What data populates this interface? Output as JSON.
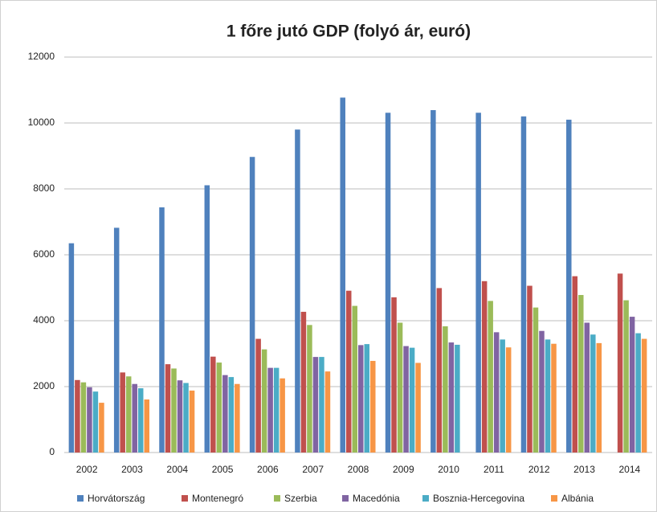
{
  "chart_data": {
    "type": "bar",
    "title": "1 főre jutó GDP (folyó ár, euró)",
    "categories": [
      "2002",
      "2003",
      "2004",
      "2005",
      "2006",
      "2007",
      "2008",
      "2009",
      "2010",
      "2011",
      "2012",
      "2013",
      "2014"
    ],
    "series": [
      {
        "name": "Horvátország",
        "color": "#4f81bd",
        "values": [
          6350,
          6820,
          7440,
          8110,
          8970,
          9800,
          10770,
          10310,
          10390,
          10310,
          10200,
          10100,
          null
        ]
      },
      {
        "name": "Montenegró",
        "color": "#c0504d",
        "values": [
          2200,
          2430,
          2680,
          2910,
          3450,
          4270,
          4910,
          4710,
          4990,
          5200,
          5060,
          5350,
          5430
        ]
      },
      {
        "name": "Szerbia",
        "color": "#9bbb59",
        "values": [
          2130,
          2310,
          2550,
          2730,
          3130,
          3870,
          4450,
          3940,
          3830,
          4600,
          4400,
          4780,
          4620
        ]
      },
      {
        "name": "Macedónia",
        "color": "#8064a2",
        "values": [
          1980,
          2080,
          2190,
          2350,
          2570,
          2900,
          3260,
          3230,
          3340,
          3650,
          3690,
          3940,
          4120
        ]
      },
      {
        "name": "Bosznia-Hercegovina",
        "color": "#4bacc6",
        "values": [
          1850,
          1950,
          2110,
          2290,
          2570,
          2900,
          3290,
          3180,
          3270,
          3430,
          3430,
          3580,
          3620
        ]
      },
      {
        "name": "Albánia",
        "color": "#f79646",
        "values": [
          1510,
          1610,
          1880,
          2080,
          2250,
          2460,
          2780,
          2720,
          null,
          3190,
          3300,
          3320,
          3450
        ]
      }
    ],
    "ylim": [
      0,
      12000
    ],
    "yticks": [
      0,
      2000,
      4000,
      6000,
      8000,
      10000,
      12000
    ],
    "grid": true
  }
}
